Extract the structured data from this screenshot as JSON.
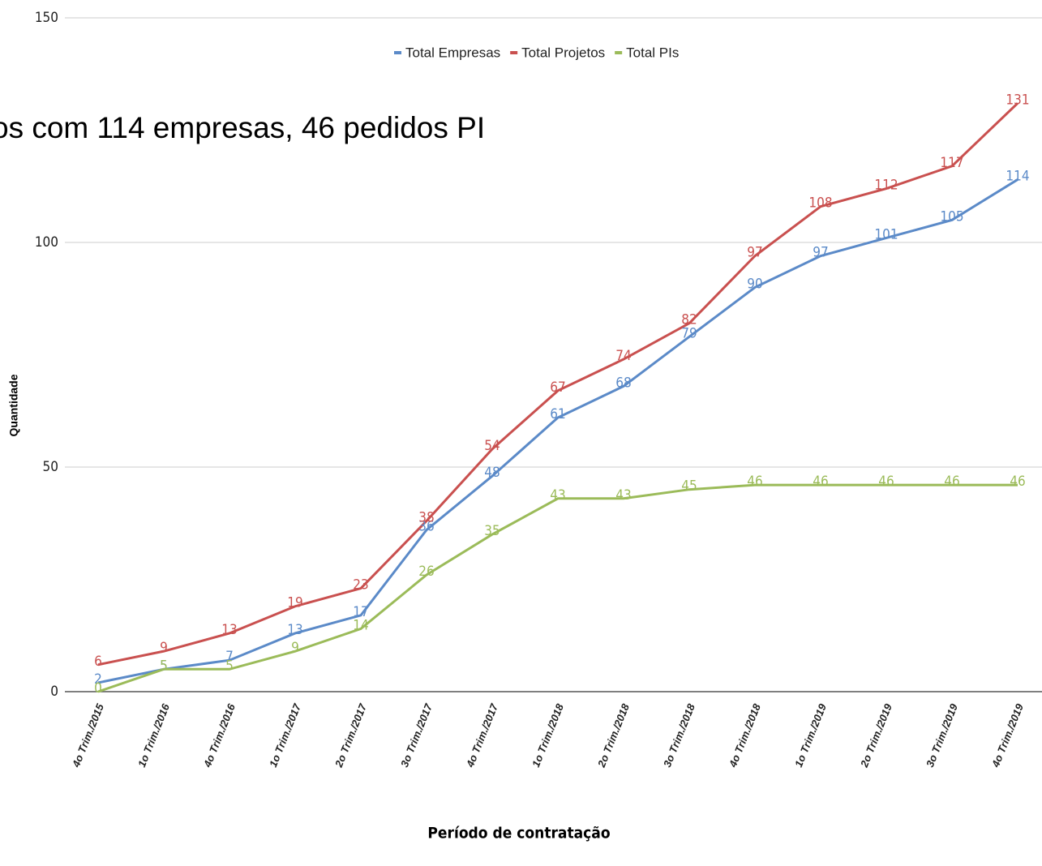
{
  "chart_data": {
    "type": "line",
    "overlay_text": "os com 114 empresas, 46 pedidos PI",
    "x_label": "Período de contratação",
    "y_label": "Quantidade",
    "categories": [
      "4o Trim./2015",
      "1o Trim./2016",
      "4o Trim./2016",
      "1o Trim./2017",
      "2o Trim./2017",
      "3o Trim./2017",
      "4o Trim./2017",
      "1o Trim./2018",
      "2o Trim./2018",
      "3o Trim./2018",
      "4o Trim./2018",
      "1o Trim./2019",
      "2o Trim./2019",
      "3o Trim./2019",
      "4o Trim./2019"
    ],
    "series": [
      {
        "name": "Total Empresas",
        "color": "#5b8ac8",
        "values": [
          2,
          5,
          7,
          13,
          17,
          36,
          48,
          61,
          68,
          79,
          90,
          97,
          101,
          105,
          114
        ]
      },
      {
        "name": "Total Projetos",
        "color": "#c9504f",
        "values": [
          6,
          9,
          13,
          19,
          23,
          38,
          54,
          67,
          74,
          82,
          97,
          108,
          112,
          117,
          131
        ]
      },
      {
        "name": "Total PIs",
        "color": "#9bbb59",
        "values": [
          0,
          5,
          5,
          9,
          14,
          26,
          35,
          43,
          43,
          45,
          46,
          46,
          46,
          46,
          46
        ]
      }
    ],
    "ylim": [
      0,
      150
    ],
    "yticks": [
      0,
      50,
      100,
      150
    ],
    "grid": true,
    "legend": "top"
  }
}
